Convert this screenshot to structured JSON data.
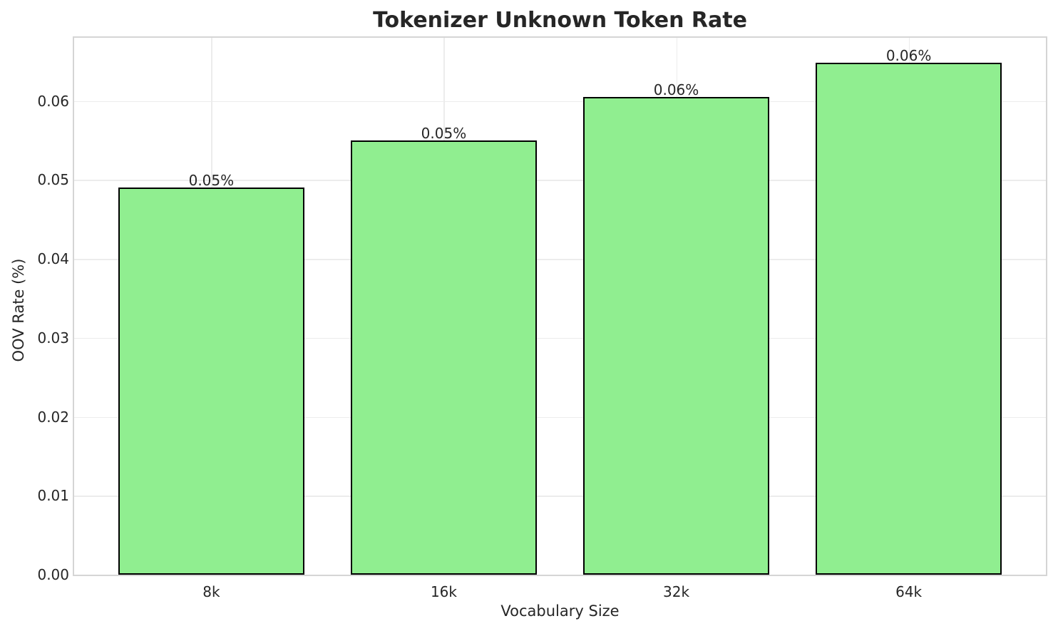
{
  "chart_data": {
    "type": "bar",
    "title": "Tokenizer Unknown Token Rate",
    "xlabel": "Vocabulary Size",
    "ylabel": "OOV Rate (%)",
    "categories": [
      "8k",
      "16k",
      "32k",
      "64k"
    ],
    "values": [
      0.049,
      0.055,
      0.0605,
      0.0648
    ],
    "bar_labels": [
      "0.05%",
      "0.05%",
      "0.06%",
      "0.06%"
    ],
    "yticks": [
      0,
      0.01,
      0.02,
      0.03,
      0.04,
      0.05,
      0.06
    ],
    "ytick_labels": [
      "0.00",
      "0.01",
      "0.02",
      "0.03",
      "0.04",
      "0.05",
      "0.06"
    ],
    "ylim": [
      0,
      0.068
    ],
    "xlim_units": [
      -0.59,
      3.59
    ],
    "bar_width_units": 0.8,
    "grid": "both",
    "legend": "none",
    "colors": {
      "bar_fill": "#90EE90",
      "bar_edge": "#000000",
      "grid_line": "#ececec",
      "spine": "#d5d5d5",
      "text": "#262626",
      "background": "#ffffff"
    }
  }
}
